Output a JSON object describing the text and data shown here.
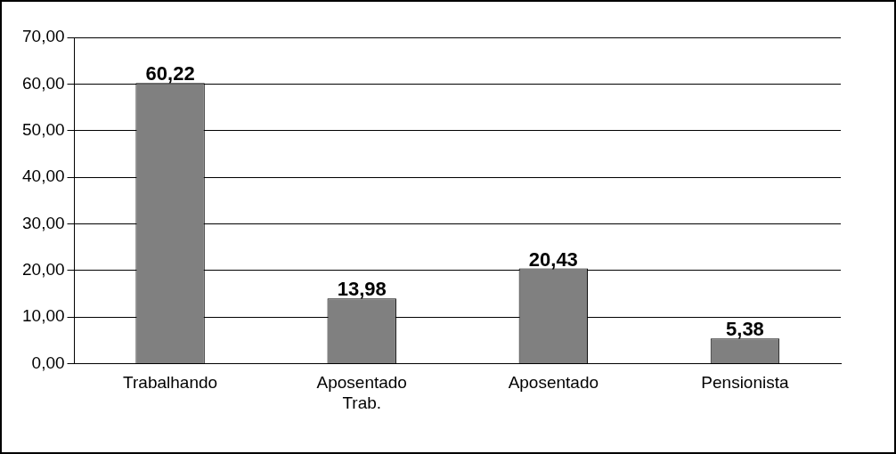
{
  "chart_data": {
    "type": "bar",
    "categories": [
      "Trabalhando",
      "Aposentado Trab.",
      "Aposentado",
      "Pensionista"
    ],
    "values": [
      60.22,
      13.98,
      20.43,
      5.38
    ],
    "value_labels": [
      "60,22",
      "13,98",
      "20,43",
      "5,38"
    ],
    "color": "#808080",
    "ylim": [
      0,
      70
    ],
    "yticks": [
      {
        "value": 0,
        "label": "0,00"
      },
      {
        "value": 10,
        "label": "10,00"
      },
      {
        "value": 20,
        "label": "20,00"
      },
      {
        "value": 30,
        "label": "30,00"
      },
      {
        "value": 40,
        "label": "40,00"
      },
      {
        "value": 50,
        "label": "50,00"
      },
      {
        "value": 60,
        "label": "60,00"
      },
      {
        "value": 70,
        "label": "70,00"
      }
    ],
    "grid": "y",
    "legend": false
  }
}
